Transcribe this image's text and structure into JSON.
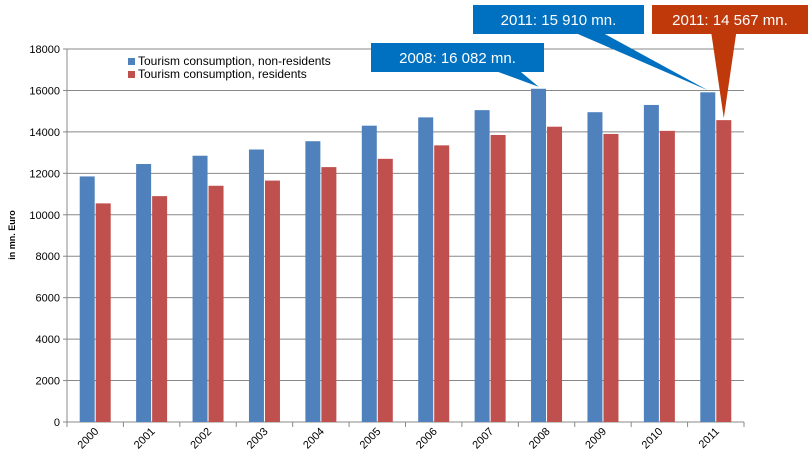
{
  "chart_data": {
    "type": "bar",
    "title": "",
    "xlabel": "",
    "ylabel": "in mn. Euro",
    "ylim": [
      0,
      18000
    ],
    "yticks": [
      0,
      2000,
      4000,
      6000,
      8000,
      10000,
      12000,
      14000,
      16000,
      18000
    ],
    "grid": true,
    "legend_position": "top-left",
    "categories": [
      "2000",
      "2001",
      "2002",
      "2003",
      "2004",
      "2005",
      "2006",
      "2007",
      "2008",
      "2009",
      "2010",
      "2011"
    ],
    "series": [
      {
        "name": "Tourism consumption, non-residents",
        "color": "#4f81bd",
        "values": [
          11850,
          12450,
          12850,
          13150,
          13550,
          14300,
          14700,
          15050,
          16082,
          14950,
          15300,
          15910
        ]
      },
      {
        "name": "Tourism consumption, residents",
        "color": "#c0504d",
        "values": [
          10550,
          10900,
          11400,
          11650,
          12300,
          12700,
          13350,
          13850,
          14250,
          13900,
          14050,
          14567
        ]
      }
    ],
    "annotations": [
      {
        "text": "2008: 16 082 mn.",
        "category": "2008",
        "series": 0,
        "color": "#0070c0"
      },
      {
        "text": "2011: 15 910 mn.",
        "category": "2011",
        "series": 0,
        "color": "#0070c0"
      },
      {
        "text": "2011: 14 567 mn.",
        "category": "2011",
        "series": 1,
        "color": "#c0390b"
      }
    ]
  }
}
